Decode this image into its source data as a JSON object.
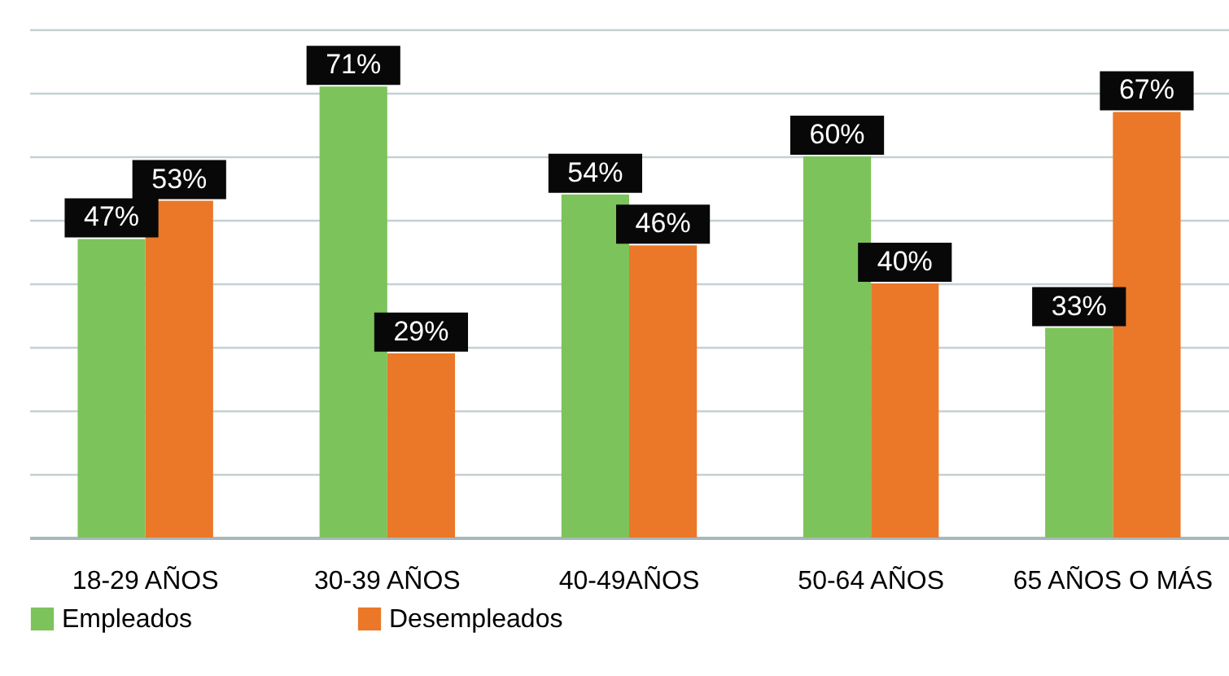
{
  "chart_data": {
    "type": "bar",
    "categories": [
      "18-29 AÑOS",
      "30-39 AÑOS",
      "40-49AÑOS",
      "50-64 AÑOS",
      "65 AÑOS O MÁS"
    ],
    "series": [
      {
        "name": "Empleados",
        "color": "#7dc35b",
        "values": [
          47,
          71,
          54,
          60,
          33
        ],
        "value_labels": [
          "47%",
          "71%",
          "54%",
          "60%",
          "33%"
        ]
      },
      {
        "name": "Desempleados",
        "color": "#ea7828",
        "values": [
          53,
          29,
          46,
          40,
          67
        ],
        "value_labels": [
          "53%",
          "29%",
          "46%",
          "40%",
          "67%"
        ]
      }
    ],
    "grid": "y",
    "legend": "bottom",
    "tick_labels": "x"
  }
}
